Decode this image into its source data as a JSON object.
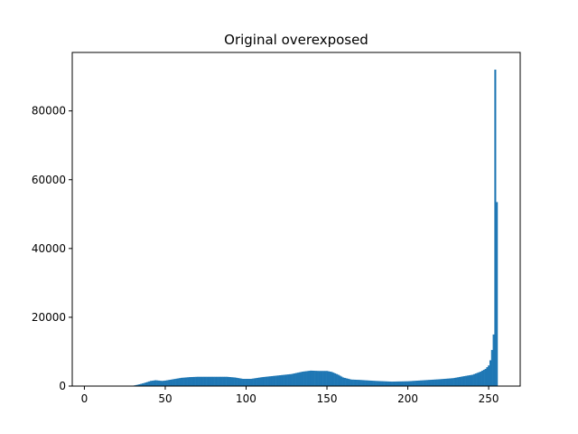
{
  "chart_data": {
    "type": "bar",
    "title": "Original overexposed",
    "xlabel": "",
    "ylabel": "",
    "xlim": [
      -7.5,
      269.5
    ],
    "ylim": [
      0,
      97000
    ],
    "x_ticks": [
      0,
      50,
      100,
      150,
      200,
      250
    ],
    "y_ticks": [
      0,
      20000,
      40000,
      60000,
      80000
    ],
    "bin_width": 1,
    "bar_color": "#1f77b4",
    "anchors": [
      [
        0,
        0
      ],
      [
        29,
        0
      ],
      [
        30,
        100
      ],
      [
        33,
        400
      ],
      [
        37,
        900
      ],
      [
        41,
        1500
      ],
      [
        44,
        1700
      ],
      [
        48,
        1500
      ],
      [
        50,
        1600
      ],
      [
        55,
        2000
      ],
      [
        60,
        2400
      ],
      [
        65,
        2600
      ],
      [
        70,
        2700
      ],
      [
        80,
        2700
      ],
      [
        88,
        2700
      ],
      [
        93,
        2500
      ],
      [
        98,
        2100
      ],
      [
        103,
        2100
      ],
      [
        110,
        2600
      ],
      [
        120,
        3100
      ],
      [
        128,
        3500
      ],
      [
        135,
        4200
      ],
      [
        140,
        4500
      ],
      [
        145,
        4400
      ],
      [
        150,
        4400
      ],
      [
        153,
        4100
      ],
      [
        157,
        3300
      ],
      [
        160,
        2500
      ],
      [
        165,
        1900
      ],
      [
        170,
        1800
      ],
      [
        180,
        1500
      ],
      [
        190,
        1300
      ],
      [
        200,
        1400
      ],
      [
        210,
        1700
      ],
      [
        220,
        2000
      ],
      [
        228,
        2300
      ],
      [
        235,
        2900
      ],
      [
        240,
        3300
      ],
      [
        245,
        4200
      ],
      [
        248,
        5000
      ],
      [
        250,
        6000
      ],
      [
        251,
        7500
      ],
      [
        252,
        10500
      ],
      [
        253,
        15000
      ],
      [
        254,
        92000
      ],
      [
        255,
        53500
      ]
    ]
  }
}
